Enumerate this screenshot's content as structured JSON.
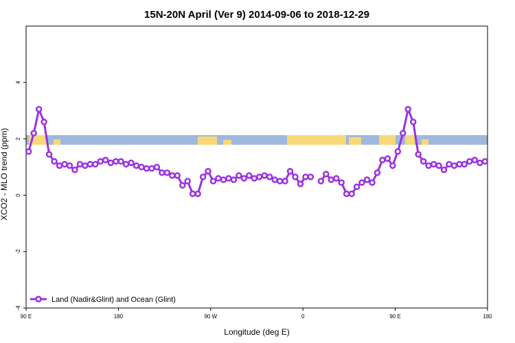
{
  "chart_data": {
    "type": "line",
    "title": "15N-20N April (Ver 9)   2014-09-06 to 2018-12-29",
    "x_label": "Longitude (deg E)",
    "y_label": "XCO2 - MLO trend (ppm)",
    "xlim": [
      90,
      540
    ],
    "xticks": [
      {
        "value": 90,
        "label": "90 E"
      },
      180,
      {
        "value": 270,
        "label": "90 W"
      },
      0,
      {
        "value": 450,
        "label": "90 E"
      },
      180
    ],
    "ylim": [
      -4,
      6
    ],
    "yticks": [
      -4,
      -2,
      0,
      2,
      4
    ],
    "legend": "bottom-left",
    "x": [
      92.5,
      97.5,
      102.5,
      107.5,
      112.5,
      117.5,
      122.5,
      127.5,
      132.5,
      137.5,
      142.5,
      147.5,
      152.5,
      157.5,
      162.5,
      167.5,
      172.5,
      177.5,
      182.5,
      187.5,
      192.5,
      197.5,
      202.5,
      207.5,
      212.5,
      217.5,
      222.5,
      227.5,
      232.5,
      237.5,
      242.5,
      247.5,
      252.5,
      257.5,
      262.5,
      267.5,
      272.5,
      277.5,
      282.5,
      287.5,
      292.5,
      297.5,
      302.5,
      307.5,
      312.5,
      317.5,
      322.5,
      327.5,
      332.5,
      337.5,
      342.5,
      347.5,
      352.5,
      357.5,
      362.5,
      367.5,
      372.5,
      377.5,
      382.5,
      387.5,
      392.5,
      397.5,
      402.5,
      407.5,
      412.5,
      417.5,
      422.5,
      427.5,
      432.5,
      437.5,
      442.5,
      447.5,
      452.5,
      457.5,
      462.5,
      467.5,
      472.5,
      477.5,
      482.5,
      487.5,
      492.5,
      497.5,
      502.5,
      507.5,
      512.5,
      517.5,
      522.5,
      527.5,
      532.5,
      537.5
    ],
    "series": [
      {
        "name": "Land (Nadir&Glint) and Ocean (Glint)",
        "color": "#9b30e0",
        "values": [
          1.55,
          2.2,
          3.05,
          2.6,
          1.45,
          1.2,
          1.05,
          1.1,
          1.05,
          0.9,
          1.1,
          1.05,
          1.1,
          1.1,
          1.2,
          1.25,
          1.15,
          1.2,
          1.2,
          1.1,
          1.15,
          1.05,
          1.0,
          0.95,
          0.95,
          1.0,
          0.8,
          0.8,
          0.7,
          0.7,
          0.35,
          0.5,
          0.05,
          0.05,
          0.65,
          0.85,
          0.5,
          0.6,
          0.55,
          0.6,
          0.55,
          0.7,
          0.6,
          0.7,
          0.6,
          0.65,
          0.7,
          0.65,
          0.55,
          0.5,
          0.5,
          0.85,
          0.65,
          0.4,
          0.65,
          0.65,
          null,
          0.5,
          0.75,
          0.55,
          0.6,
          0.45,
          0.05,
          0.05,
          0.3,
          0.45,
          0.55,
          0.45,
          0.8,
          1.25,
          1.3,
          1.05,
          1.55,
          2.2,
          3.05,
          2.6,
          1.45,
          1.2,
          1.05,
          1.1,
          1.05,
          0.9,
          1.1,
          1.05,
          1.1,
          1.1,
          1.2,
          1.25,
          1.15,
          1.2
        ]
      }
    ]
  }
}
